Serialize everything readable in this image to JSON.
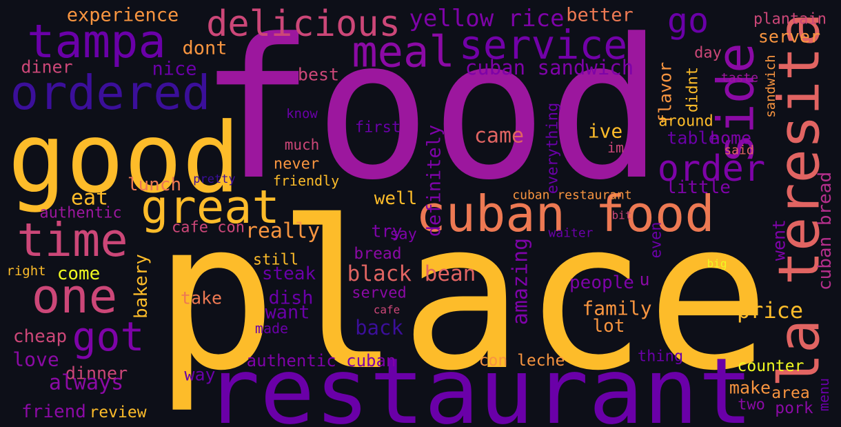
{
  "words": [
    {
      "text": "food",
      "color": "#9c179e"
    },
    {
      "text": "place",
      "color": "#fdbc2a"
    },
    {
      "text": "restaurant",
      "color": "#6a00a8"
    },
    {
      "text": "good",
      "color": "#fdbc2a"
    },
    {
      "text": "tampa",
      "color": "#6a00a8"
    },
    {
      "text": "ordered",
      "color": "#3b0f9a"
    },
    {
      "text": "delicious",
      "color": "#cc4778"
    },
    {
      "text": "meal",
      "color": "#8b0aa5"
    },
    {
      "text": "service",
      "color": "#7201a8"
    },
    {
      "text": "go",
      "color": "#6a00a8"
    },
    {
      "text": "side",
      "color": "#8b0aa5"
    },
    {
      "text": "la teresita",
      "color": "#e16462"
    },
    {
      "text": "great",
      "color": "#fdbc2a"
    },
    {
      "text": "cuban food",
      "color": "#ed7953"
    },
    {
      "text": "time",
      "color": "#cc4778"
    },
    {
      "text": "one",
      "color": "#cc4778"
    },
    {
      "text": "got",
      "color": "#7e03a8"
    },
    {
      "text": "order",
      "color": "#7e03a8"
    },
    {
      "text": "experience",
      "color": "#f89540"
    },
    {
      "text": "dont",
      "color": "#f89540"
    },
    {
      "text": "diner",
      "color": "#cc4778"
    },
    {
      "text": "nice",
      "color": "#6a00a8"
    },
    {
      "text": "yellow rice",
      "color": "#7e03a8"
    },
    {
      "text": "better",
      "color": "#ed7953"
    },
    {
      "text": "plantain",
      "color": "#cc4778"
    },
    {
      "text": "server",
      "color": "#f89540"
    },
    {
      "text": "day",
      "color": "#cc4778"
    },
    {
      "text": "sandwich",
      "color": "#f89540"
    },
    {
      "text": "taste",
      "color": "#9c179e"
    },
    {
      "text": "flavor",
      "color": "#f89540"
    },
    {
      "text": "didnt",
      "color": "#fdbc2a"
    },
    {
      "text": "around",
      "color": "#fdbc2a"
    },
    {
      "text": "table",
      "color": "#6a00a8"
    },
    {
      "text": "home",
      "color": "#7e03a8"
    },
    {
      "text": "said",
      "color": "#e16462"
    },
    {
      "text": "little",
      "color": "#7e03a8"
    },
    {
      "text": "cuban bread",
      "color": "#b52f8c"
    },
    {
      "text": "went",
      "color": "#7e03a8"
    },
    {
      "text": "even",
      "color": "#6a00a8"
    },
    {
      "text": "bit",
      "color": "#cc4778"
    },
    {
      "text": "cuban restaurant",
      "color": "#f89540"
    },
    {
      "text": "big",
      "color": "#f0f921"
    },
    {
      "text": "u",
      "color": "#8b0aa5"
    },
    {
      "text": "people",
      "color": "#7e03a8"
    },
    {
      "text": "price",
      "color": "#fdbc2a"
    },
    {
      "text": "family",
      "color": "#f89540"
    },
    {
      "text": "lot",
      "color": "#f89540"
    },
    {
      "text": "menu",
      "color": "#6a00a8"
    },
    {
      "text": "counter",
      "color": "#f0f921"
    },
    {
      "text": "make",
      "color": "#f89540"
    },
    {
      "text": "area",
      "color": "#f89540"
    },
    {
      "text": "two",
      "color": "#8b0aa5"
    },
    {
      "text": "pork",
      "color": "#8b0aa5"
    },
    {
      "text": "thing",
      "color": "#6a00a8"
    },
    {
      "text": "con leche",
      "color": "#f89540"
    },
    {
      "text": "authentic cuban",
      "color": "#7e03a8"
    },
    {
      "text": "dinner",
      "color": "#cc4778"
    },
    {
      "text": "way",
      "color": "#6a00a8"
    },
    {
      "text": "always",
      "color": "#8b0aa5"
    },
    {
      "text": "love",
      "color": "#8b0aa5"
    },
    {
      "text": "cheap",
      "color": "#cc4778"
    },
    {
      "text": "friend",
      "color": "#8b0aa5"
    },
    {
      "text": "review",
      "color": "#fdbc2a"
    },
    {
      "text": "bakery",
      "color": "#fdbc2a"
    },
    {
      "text": "come",
      "color": "#f0f921"
    },
    {
      "text": "right",
      "color": "#fdbc2a"
    },
    {
      "text": "authentic",
      "color": "#9c179e"
    },
    {
      "text": "eat",
      "color": "#fdbc2a"
    },
    {
      "text": "lunch",
      "color": "#ed7953"
    },
    {
      "text": "pretty",
      "color": "#3b0f9a"
    },
    {
      "text": "friendly",
      "color": "#fdbc2a"
    },
    {
      "text": "cafe con",
      "color": "#cc4778"
    },
    {
      "text": "really",
      "color": "#f89540"
    },
    {
      "text": "still",
      "color": "#fdbc2a"
    },
    {
      "text": "steak",
      "color": "#6a00a8"
    },
    {
      "text": "take",
      "color": "#ed7953"
    },
    {
      "text": "dish",
      "color": "#6a00a8"
    },
    {
      "text": "want",
      "color": "#6a00a8"
    },
    {
      "text": "made",
      "color": "#6a00a8"
    },
    {
      "text": "served",
      "color": "#8b0aa5"
    },
    {
      "text": "cafe",
      "color": "#cc4778"
    },
    {
      "text": "back",
      "color": "#3b0f9a"
    },
    {
      "text": "black bean",
      "color": "#e16462"
    },
    {
      "text": "bread",
      "color": "#8b0aa5"
    },
    {
      "text": "say",
      "color": "#7e03a8"
    },
    {
      "text": "try",
      "color": "#7e03a8"
    },
    {
      "text": "well",
      "color": "#fdbc2a"
    },
    {
      "text": "never",
      "color": "#f89540"
    },
    {
      "text": "much",
      "color": "#cc4778"
    },
    {
      "text": "first",
      "color": "#6a00a8"
    },
    {
      "text": "know",
      "color": "#6a00a8"
    },
    {
      "text": "best",
      "color": "#cc4778"
    },
    {
      "text": "cuban sandwich",
      "color": "#7e03a8"
    },
    {
      "text": "came",
      "color": "#e16462"
    },
    {
      "text": "definitely",
      "color": "#7e03a8"
    },
    {
      "text": "everything",
      "color": "#6a00a8"
    },
    {
      "text": "amazing",
      "color": "#7e03a8"
    },
    {
      "text": "ive",
      "color": "#fdbc2a"
    },
    {
      "text": "im",
      "color": "#cc4778"
    },
    {
      "text": "waiter",
      "color": "#6a00a8"
    }
  ]
}
